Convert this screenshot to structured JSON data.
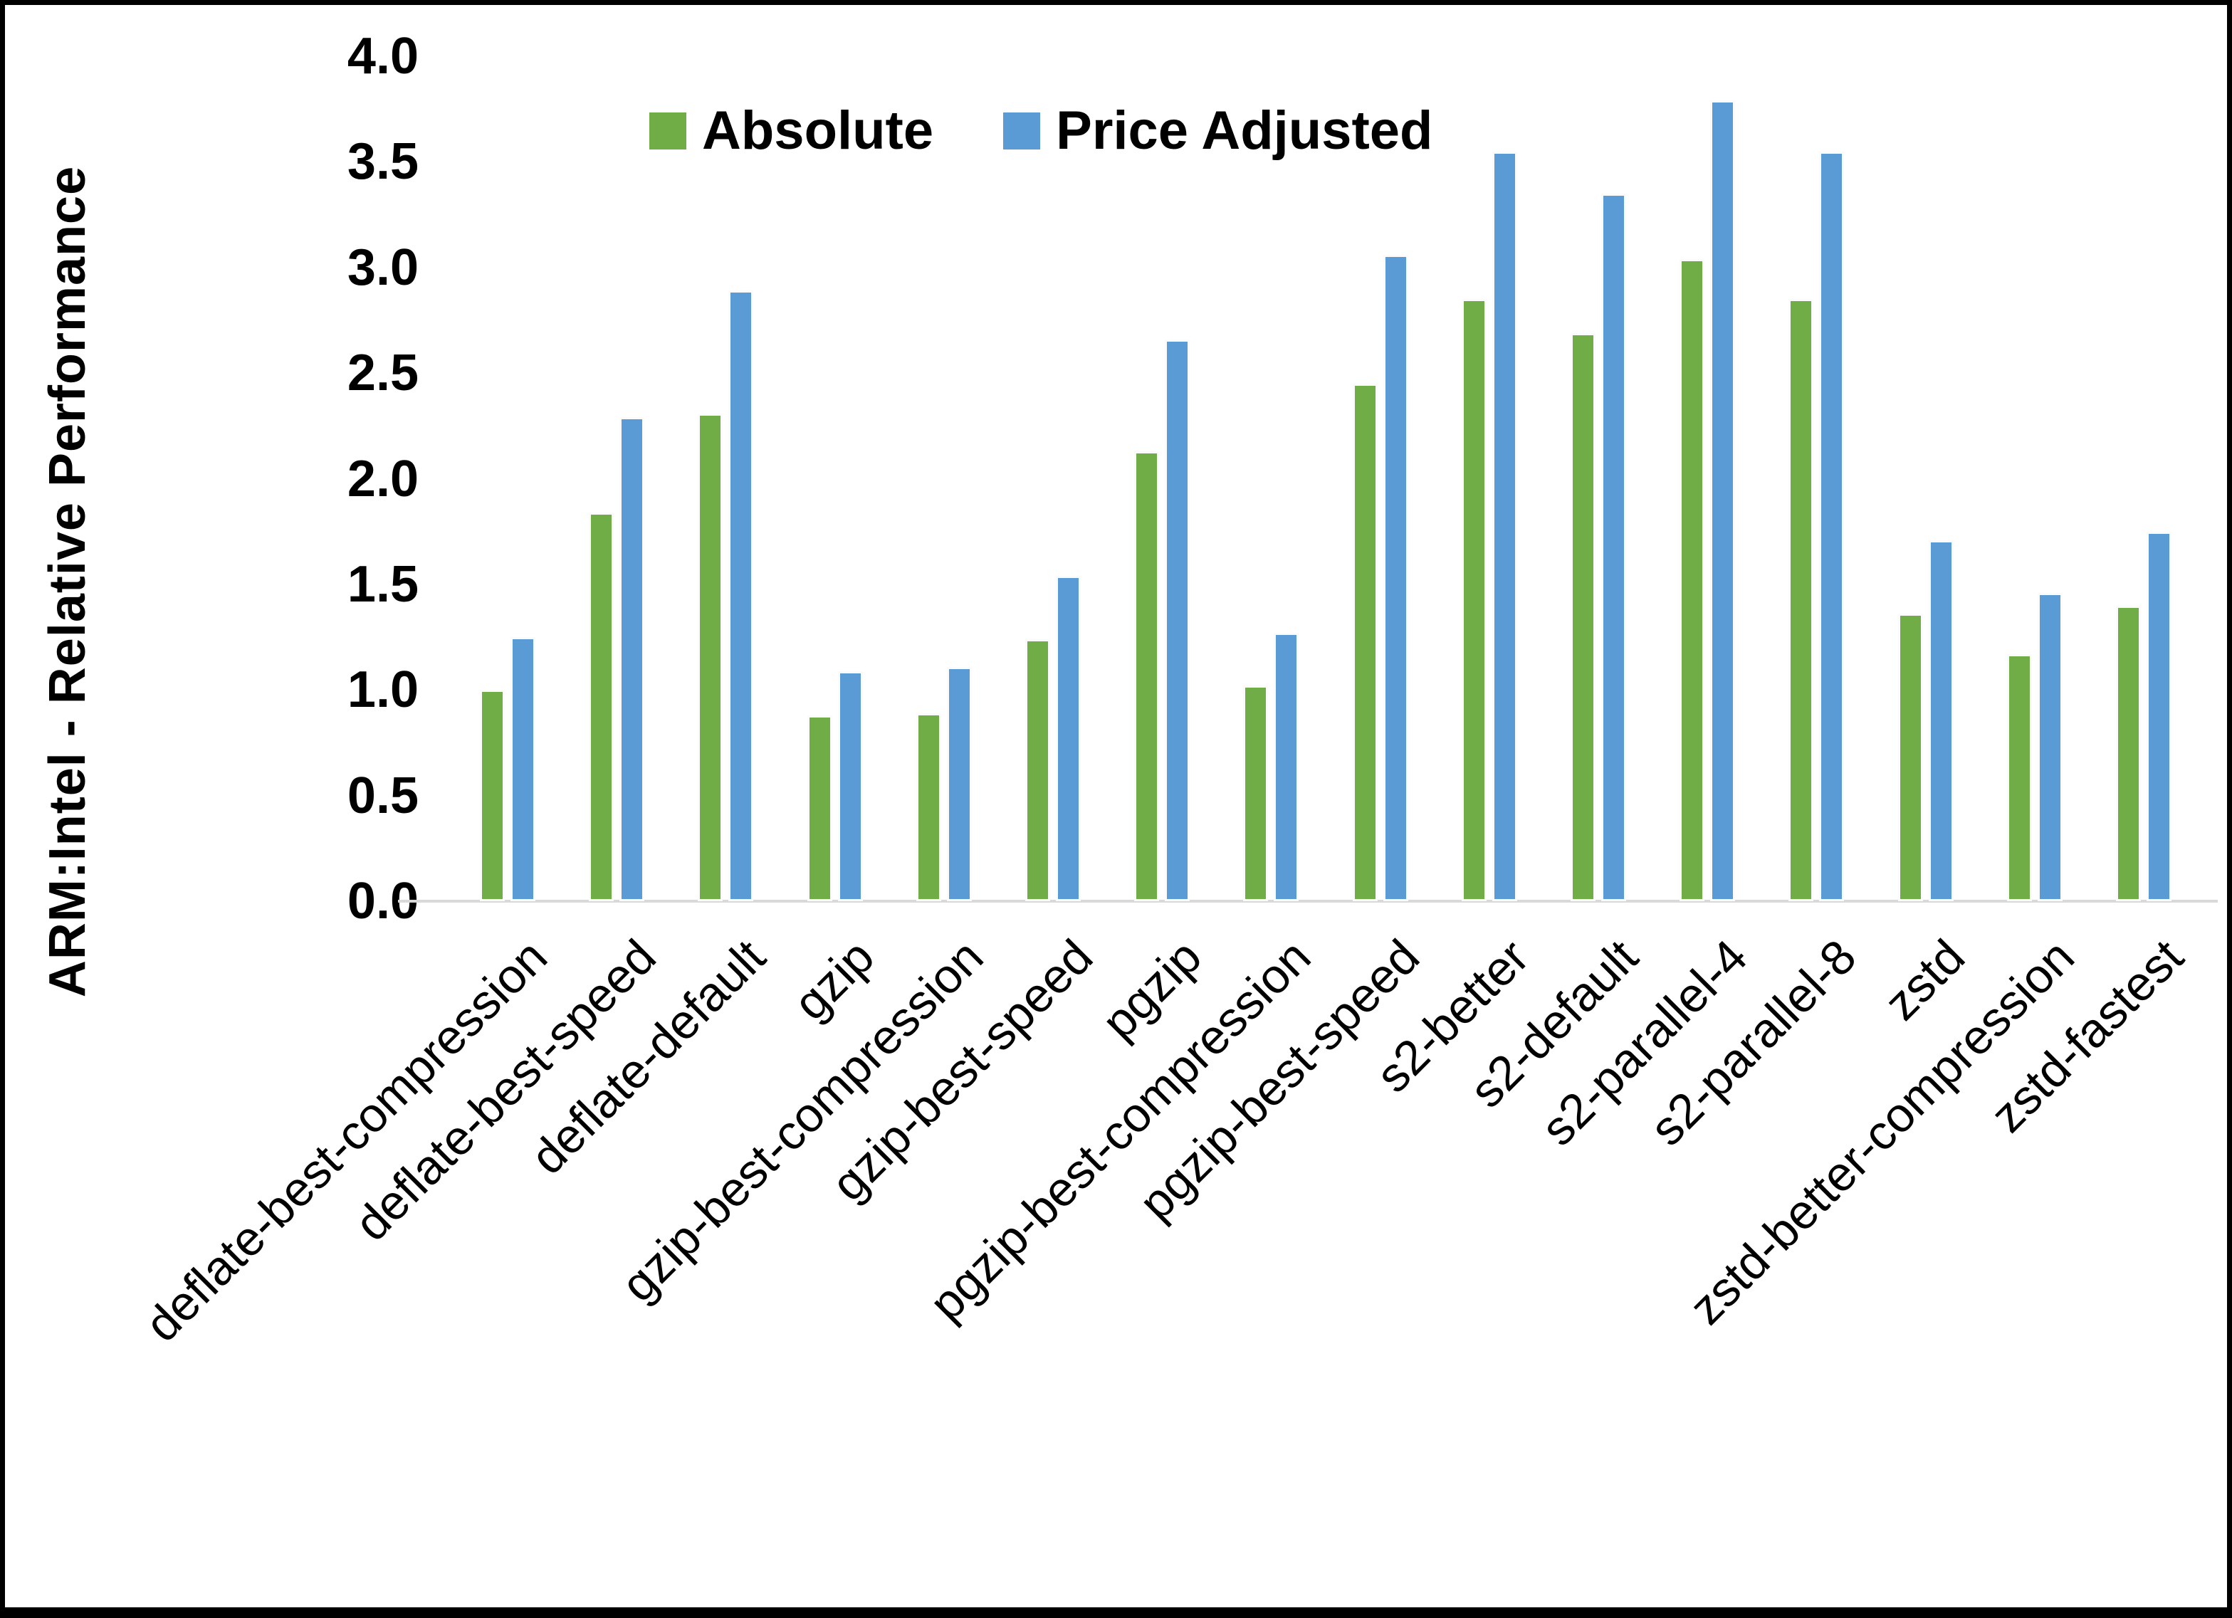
{
  "chart_data": {
    "type": "bar",
    "title": "",
    "xlabel": "",
    "ylabel": "ARM:Intel - Relative Performance",
    "ylim": [
      0.0,
      4.0
    ],
    "ytick_step": 0.5,
    "yticks": [
      "0.0",
      "0.5",
      "1.0",
      "1.5",
      "2.0",
      "2.5",
      "3.0",
      "3.5",
      "4.0"
    ],
    "grid": false,
    "legend_position": "top-center",
    "categories": [
      "deflate-best-compression",
      "deflate-best-speed",
      "deflate-default",
      "gzip",
      "gzip-best-compression",
      "gzip-best-speed",
      "pgzip",
      "pgzip-best-compression",
      "pgzip-best-speed",
      "s2-better",
      "s2-default",
      "s2-parallel-4",
      "s2-parallel-8",
      "zstd",
      "zstd-better-compression",
      "zstd-fastest"
    ],
    "series": [
      {
        "name": "Absolute",
        "color": "#70AD47",
        "values": [
          1.0,
          1.84,
          2.31,
          0.88,
          0.89,
          1.24,
          2.13,
          1.02,
          2.45,
          2.85,
          2.69,
          3.04,
          2.85,
          1.36,
          1.17,
          1.4
        ]
      },
      {
        "name": "Price Adjusted",
        "color": "#5B9BD5",
        "values": [
          1.25,
          2.29,
          2.89,
          1.09,
          1.11,
          1.54,
          2.66,
          1.27,
          3.06,
          3.55,
          3.35,
          3.79,
          3.55,
          1.71,
          1.46,
          1.75
        ]
      }
    ],
    "colors": {
      "axis_line": "#D9D9D9",
      "text": "#000000"
    }
  }
}
